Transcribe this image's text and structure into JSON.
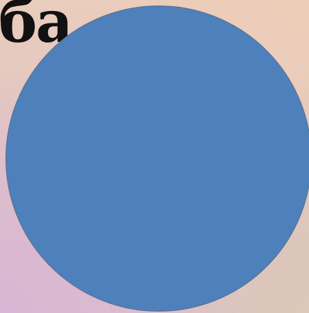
{
  "slide": {
    "heading_text": "ба"
  },
  "shapes": {
    "circle_fill": "#4e80bc",
    "circle_outline": "#5a6f8a"
  },
  "colors": {
    "background_top": "#e9cdbd",
    "background_bottom_left": "#d8b6d4",
    "background_bottom_right": "#dbc8b8",
    "heading_text": "#111111"
  }
}
